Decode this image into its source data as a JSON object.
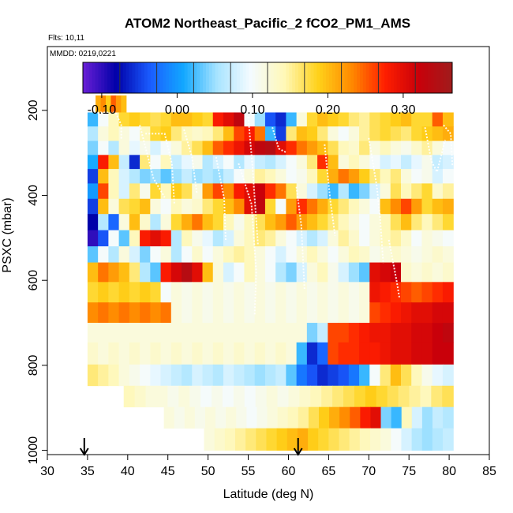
{
  "chart_data": {
    "type": "heatmap",
    "title": "ATOM2 Northeast_Pacific_2 fCO2_PM1_AMS",
    "flights_label": "Flts: 10,11",
    "date_label": "MMDD: 0219,0221",
    "xlabel": "Latitude (deg N)",
    "ylabel": "PSXC (mbar)",
    "xlim": [
      30,
      85
    ],
    "ylim": [
      1010,
      50
    ],
    "x_ticks": [
      "30",
      "35",
      "40",
      "45",
      "50",
      "55",
      "60",
      "65",
      "70",
      "75",
      "80",
      "85"
    ],
    "y_ticks": [
      "200",
      "400",
      "600",
      "800",
      "1000"
    ],
    "colorbar": {
      "range": [
        -0.125,
        0.365
      ],
      "tick_labels": [
        "-0.10",
        "0.00",
        "0.10",
        "0.20",
        "0.30"
      ],
      "colors": [
        "#6a1fd6",
        "#0000a8",
        "#1a5cff",
        "#12a8ff",
        "#a8e4ff",
        "#f4fbff",
        "#fff8b8",
        "#ffd21a",
        "#ff8a00",
        "#ff1e00",
        "#c8000a",
        "#a01c1c"
      ]
    },
    "markers": [
      {
        "latitude": 34.6,
        "label": "arrow"
      },
      {
        "latitude": 61.2,
        "label": "arrow"
      }
    ],
    "bands": [
      {
        "p_top": 165,
        "p_bottom": 205,
        "lat_start": 36,
        "lat_end": 39.8,
        "values": [
          0.21,
          0.23,
          0.19,
          0.25,
          0.22,
          0.2
        ]
      },
      {
        "p_top": 205,
        "p_bottom": 238,
        "lat_start": 35,
        "lat_end": 80.5,
        "values": [
          0.02,
          0.1,
          0.14,
          0.18,
          0.19,
          0.18,
          0.17,
          0.18,
          0.2,
          0.2,
          0.19,
          0.18,
          0.28,
          0.3,
          0.33,
          0.1,
          0.05,
          -0.04,
          -0.06,
          0.02,
          0.12,
          0.18,
          0.2,
          0.19,
          0.18,
          0.16,
          0.15,
          0.17,
          0.18,
          0.19,
          0.2,
          0.18,
          0.18,
          0.25,
          0.2
        ]
      },
      {
        "p_top": 238,
        "p_bottom": 272,
        "lat_start": 35,
        "lat_end": 80.5,
        "values": [
          0.06,
          0.12,
          0.14,
          0.12,
          0.1,
          0.14,
          0.18,
          0.19,
          0.16,
          0.14,
          0.13,
          0.14,
          0.16,
          0.2,
          0.26,
          0.28,
          0.24,
          0.02,
          -0.05,
          0.16,
          0.2,
          0.19,
          0.16,
          0.12,
          0.1,
          0.12,
          0.15,
          0.17,
          0.18,
          0.17,
          0.16,
          0.18,
          0.19,
          0.2,
          0.21
        ]
      },
      {
        "p_top": 272,
        "p_bottom": 305,
        "lat_start": 35,
        "lat_end": 80.5,
        "values": [
          0.04,
          0.1,
          0.06,
          0.12,
          0.09,
          0.11,
          0.08,
          0.1,
          0.12,
          0.15,
          0.17,
          0.2,
          0.25,
          0.27,
          0.29,
          0.31,
          0.33,
          0.34,
          0.3,
          0.27,
          0.24,
          0.22,
          0.2,
          0.17,
          0.14,
          0.13,
          0.16,
          0.12,
          0.14,
          0.12,
          0.11,
          0.13,
          0.15,
          0.12,
          0.1
        ]
      },
      {
        "p_top": 305,
        "p_bottom": 338,
        "lat_start": 35,
        "lat_end": 80.5,
        "values": [
          0.01,
          0.28,
          0.2,
          0.07,
          -0.06,
          0.16,
          0.1,
          0.14,
          0.07,
          0.09,
          0.11,
          0.06,
          0.08,
          0.1,
          0.06,
          0.09,
          0.07,
          0.06,
          0.08,
          0.1,
          0.12,
          0.16,
          0.27,
          0.2,
          0.12,
          0.14,
          0.12,
          0.1,
          0.08,
          0.09,
          0.07,
          0.09,
          0.11,
          0.07,
          0.08
        ]
      },
      {
        "p_top": 338,
        "p_bottom": 372,
        "lat_start": 35,
        "lat_end": 80.5,
        "values": [
          -0.05,
          0.2,
          0.14,
          0.08,
          0.06,
          0.04,
          0.05,
          0.03,
          0.05,
          0.07,
          0.05,
          0.06,
          0.05,
          0.07,
          0.1,
          0.12,
          0.15,
          0.14,
          0.12,
          0.1,
          0.11,
          0.14,
          0.18,
          0.21,
          0.24,
          0.22,
          0.19,
          0.16,
          0.14,
          0.16,
          0.12,
          0.1,
          0.11,
          0.08,
          0.1
        ]
      },
      {
        "p_top": 372,
        "p_bottom": 408,
        "lat_start": 35,
        "lat_end": 80.5,
        "values": [
          0.0,
          0.26,
          0.14,
          0.08,
          0.16,
          0.11,
          0.18,
          0.14,
          0.19,
          0.17,
          0.12,
          0.22,
          0.26,
          0.23,
          0.28,
          0.3,
          0.32,
          0.27,
          0.24,
          0.17,
          0.12,
          0.08,
          0.05,
          0.02,
          0.06,
          0.02,
          0.04,
          0.08,
          0.12,
          0.17,
          0.14,
          0.16,
          0.18,
          0.13,
          0.15
        ]
      },
      {
        "p_top": 408,
        "p_bottom": 444,
        "lat_start": 35,
        "lat_end": 80.5,
        "values": [
          -0.05,
          0.2,
          0.12,
          0.17,
          0.18,
          0.2,
          0.12,
          0.1,
          0.14,
          0.12,
          0.13,
          0.16,
          0.18,
          0.2,
          0.23,
          0.3,
          0.33,
          0.18,
          0.1,
          0.22,
          0.27,
          0.24,
          0.21,
          0.18,
          0.16,
          0.14,
          0.12,
          0.1,
          0.2,
          0.23,
          0.26,
          0.22,
          0.18,
          0.2,
          0.21
        ]
      },
      {
        "p_top": 444,
        "p_bottom": 482,
        "lat_start": 35,
        "lat_end": 80.5,
        "values": [
          -0.08,
          0.06,
          -0.03,
          0.12,
          0.2,
          0.13,
          0.06,
          0.12,
          0.18,
          0.21,
          0.24,
          0.2,
          0.18,
          0.14,
          0.11,
          0.14,
          0.17,
          0.2,
          0.22,
          0.25,
          0.22,
          0.2,
          0.18,
          0.16,
          0.14,
          0.12,
          0.1,
          0.12,
          0.14,
          0.17,
          0.2,
          0.16,
          0.14,
          0.16,
          0.18
        ]
      },
      {
        "p_top": 482,
        "p_bottom": 520,
        "lat_start": 35,
        "lat_end": 80.5,
        "values": [
          -0.1,
          -0.04,
          0.1,
          0.03,
          0.14,
          0.28,
          0.3,
          0.28,
          0.06,
          0.14,
          0.11,
          0.09,
          0.06,
          0.08,
          0.12,
          0.14,
          0.16,
          0.15,
          0.12,
          0.1,
          0.08,
          0.06,
          0.08,
          0.12,
          0.15,
          0.13,
          0.1,
          0.12,
          0.14,
          0.15,
          0.13,
          0.1,
          0.12,
          0.11,
          0.1
        ]
      },
      {
        "p_top": 520,
        "p_bottom": 558,
        "lat_start": 35,
        "lat_end": 80.5,
        "values": [
          0.03,
          0.1,
          0.06,
          0.12,
          0.08,
          0.04,
          0.1,
          0.12,
          0.06,
          0.1,
          0.13,
          0.1,
          0.12,
          0.14,
          0.15,
          0.14,
          0.12,
          0.1,
          0.08,
          0.1,
          0.12,
          0.14,
          0.12,
          0.1,
          0.12,
          0.14,
          0.13,
          0.11,
          0.12,
          0.13,
          0.12,
          0.11,
          0.12,
          0.13,
          0.12
        ]
      },
      {
        "p_top": 558,
        "p_bottom": 604,
        "lat_start": 35,
        "lat_end": 80.5,
        "values": [
          0.2,
          0.24,
          0.22,
          0.2,
          0.16,
          0.06,
          0.03,
          0.28,
          0.31,
          0.34,
          0.3,
          0.2,
          0.12,
          0.08,
          0.1,
          0.14,
          0.12,
          0.1,
          0.06,
          0.04,
          0.08,
          0.12,
          0.14,
          0.11,
          0.08,
          0.05,
          0.03,
          0.3,
          0.31,
          0.32,
          0.13,
          0.12,
          0.13,
          0.12,
          0.13
        ]
      },
      {
        "p_top": 604,
        "p_bottom": 652,
        "lat_start": 35,
        "lat_end": 80.5,
        "values": [
          0.18,
          0.19,
          0.18,
          0.19,
          0.18,
          0.19,
          0.18,
          0.1,
          0.12,
          0.11,
          0.12,
          0.11,
          0.12,
          0.11,
          0.12,
          0.11,
          0.12,
          0.11,
          0.12,
          0.11,
          0.12,
          0.11,
          0.12,
          0.11,
          0.12,
          0.11,
          0.12,
          0.29,
          0.28,
          0.27,
          0.26,
          0.25,
          0.26,
          0.27,
          0.28
        ]
      },
      {
        "p_top": 652,
        "p_bottom": 700,
        "lat_start": 35,
        "lat_end": 80.5,
        "values": [
          0.23,
          0.24,
          0.23,
          0.24,
          0.23,
          0.24,
          0.23,
          0.24,
          0.12,
          0.11,
          0.12,
          0.11,
          0.12,
          0.11,
          0.12,
          0.11,
          0.12,
          0.11,
          0.12,
          0.11,
          0.12,
          0.11,
          0.12,
          0.11,
          0.12,
          0.11,
          0.12,
          0.26,
          0.27,
          0.28,
          0.29,
          0.3,
          0.3,
          0.31,
          0.31
        ]
      },
      {
        "p_top": 700,
        "p_bottom": 746,
        "lat_start": 35,
        "lat_end": 80.5,
        "values": [
          0.12,
          0.12,
          0.12,
          0.12,
          0.12,
          0.12,
          0.12,
          0.12,
          0.12,
          0.12,
          0.12,
          0.12,
          0.12,
          0.12,
          0.12,
          0.12,
          0.12,
          0.12,
          0.12,
          0.12,
          0.12,
          0.04,
          0.07,
          0.26,
          0.26,
          0.27,
          0.28,
          0.29,
          0.29,
          0.3,
          0.3,
          0.31,
          0.31,
          0.32,
          0.33
        ]
      },
      {
        "p_top": 746,
        "p_bottom": 798,
        "lat_start": 35,
        "lat_end": 80.5,
        "values": [
          0.13,
          0.12,
          0.13,
          0.12,
          0.13,
          0.12,
          0.13,
          0.12,
          0.13,
          0.12,
          0.13,
          0.12,
          0.13,
          0.12,
          0.13,
          0.12,
          0.13,
          0.12,
          0.13,
          0.12,
          0.02,
          -0.06,
          -0.03,
          0.26,
          0.27,
          0.27,
          0.28,
          0.28,
          0.29,
          0.3,
          0.3,
          0.31,
          0.31,
          0.32,
          0.32
        ]
      },
      {
        "p_top": 798,
        "p_bottom": 848,
        "lat_start": 35,
        "lat_end": 80.5,
        "values": [
          0.16,
          0.15,
          0.14,
          0.12,
          0.11,
          0.1,
          0.09,
          0.08,
          0.07,
          0.06,
          0.08,
          0.07,
          0.06,
          0.08,
          0.07,
          0.06,
          0.05,
          0.06,
          0.07,
          0.03,
          -0.02,
          -0.04,
          -0.06,
          -0.05,
          -0.04,
          -0.02,
          0.02,
          0.1,
          0.16,
          0.2,
          0.17,
          0.14,
          0.11,
          0.09,
          0.08
        ]
      },
      {
        "p_top": 848,
        "p_bottom": 898,
        "lat_start": 39.5,
        "lat_end": 80.5,
        "values": [
          0.14,
          0.13,
          0.12,
          0.12,
          0.11,
          0.12,
          0.11,
          0.1,
          0.11,
          0.1,
          0.11,
          0.1,
          0.11,
          0.12,
          0.11,
          0.12,
          0.13,
          0.14,
          0.15,
          0.16,
          0.17,
          0.18,
          0.19,
          0.18,
          0.17,
          0.16,
          0.15,
          0.14,
          0.16,
          0.17
        ]
      },
      {
        "p_top": 898,
        "p_bottom": 948,
        "lat_start": 44.5,
        "lat_end": 80.5,
        "values": [
          0.12,
          0.11,
          0.12,
          0.11,
          0.12,
          0.11,
          0.12,
          0.11,
          0.1,
          0.11,
          0.12,
          0.13,
          0.14,
          0.15,
          0.17,
          0.19,
          0.21,
          0.23,
          0.25,
          0.28,
          0.3,
          0.04,
          0.02,
          0.14,
          0.08,
          0.05,
          0.07,
          0.06
        ]
      },
      {
        "p_top": 948,
        "p_bottom": 1000,
        "lat_start": 49.5,
        "lat_end": 80.5,
        "values": [
          0.12,
          0.13,
          0.14,
          0.15,
          0.16,
          0.17,
          0.18,
          0.19,
          0.2,
          0.21,
          0.19,
          0.18,
          0.17,
          0.16,
          0.15,
          0.14,
          0.13,
          0.12,
          0.1,
          0.08,
          0.06,
          0.05,
          0.06,
          0.07
        ]
      }
    ],
    "flight_tracks": [
      {
        "points": [
          [
            36.2,
            205
          ],
          [
            38.5,
            205
          ],
          [
            39.2,
            235
          ],
          [
            39.2,
            270
          ]
        ]
      },
      {
        "points": [
          [
            41.5,
            235
          ],
          [
            43.2,
            360
          ],
          [
            44.6,
            405
          ]
        ]
      },
      {
        "points": [
          [
            42.2,
            255
          ],
          [
            44.6,
            255
          ],
          [
            45.5,
            325
          ],
          [
            45.8,
            420
          ]
        ]
      },
      {
        "points": [
          [
            47,
            245
          ],
          [
            48,
            310
          ],
          [
            48.6,
            395
          ]
        ]
      },
      {
        "points": [
          [
            51,
            310
          ],
          [
            52,
            408
          ],
          [
            52.2,
            505
          ]
        ]
      },
      {
        "points": [
          [
            53.8,
            325
          ],
          [
            55.4,
            420
          ],
          [
            56,
            580
          ],
          [
            55.8,
            680
          ]
        ]
      },
      {
        "points": [
          [
            55,
            215
          ],
          [
            55.5,
            325
          ],
          [
            56.2,
            515
          ]
        ]
      },
      {
        "points": [
          [
            58,
            240
          ],
          [
            58.8,
            290
          ],
          [
            59.8,
            300
          ]
        ]
      },
      {
        "points": [
          [
            61,
            380
          ],
          [
            61.6,
            470
          ],
          [
            62,
            620
          ]
        ]
      },
      {
        "points": [
          [
            64.5,
            280
          ],
          [
            65.2,
            410
          ],
          [
            65.8,
            495
          ]
        ]
      },
      {
        "points": [
          [
            70,
            265
          ],
          [
            71,
            380
          ],
          [
            71.4,
            450
          ],
          [
            71.8,
            560
          ]
        ]
      },
      {
        "points": [
          [
            72.5,
            505
          ],
          [
            73.5,
            605
          ],
          [
            73.8,
            640
          ]
        ]
      },
      {
        "points": [
          [
            77,
            240
          ],
          [
            77.8,
            320
          ],
          [
            78.5,
            345
          ],
          [
            79.5,
            270
          ]
        ]
      },
      {
        "points": [
          [
            79.3,
            235
          ],
          [
            80.2,
            255
          ],
          [
            80.4,
            330
          ]
        ]
      }
    ]
  }
}
